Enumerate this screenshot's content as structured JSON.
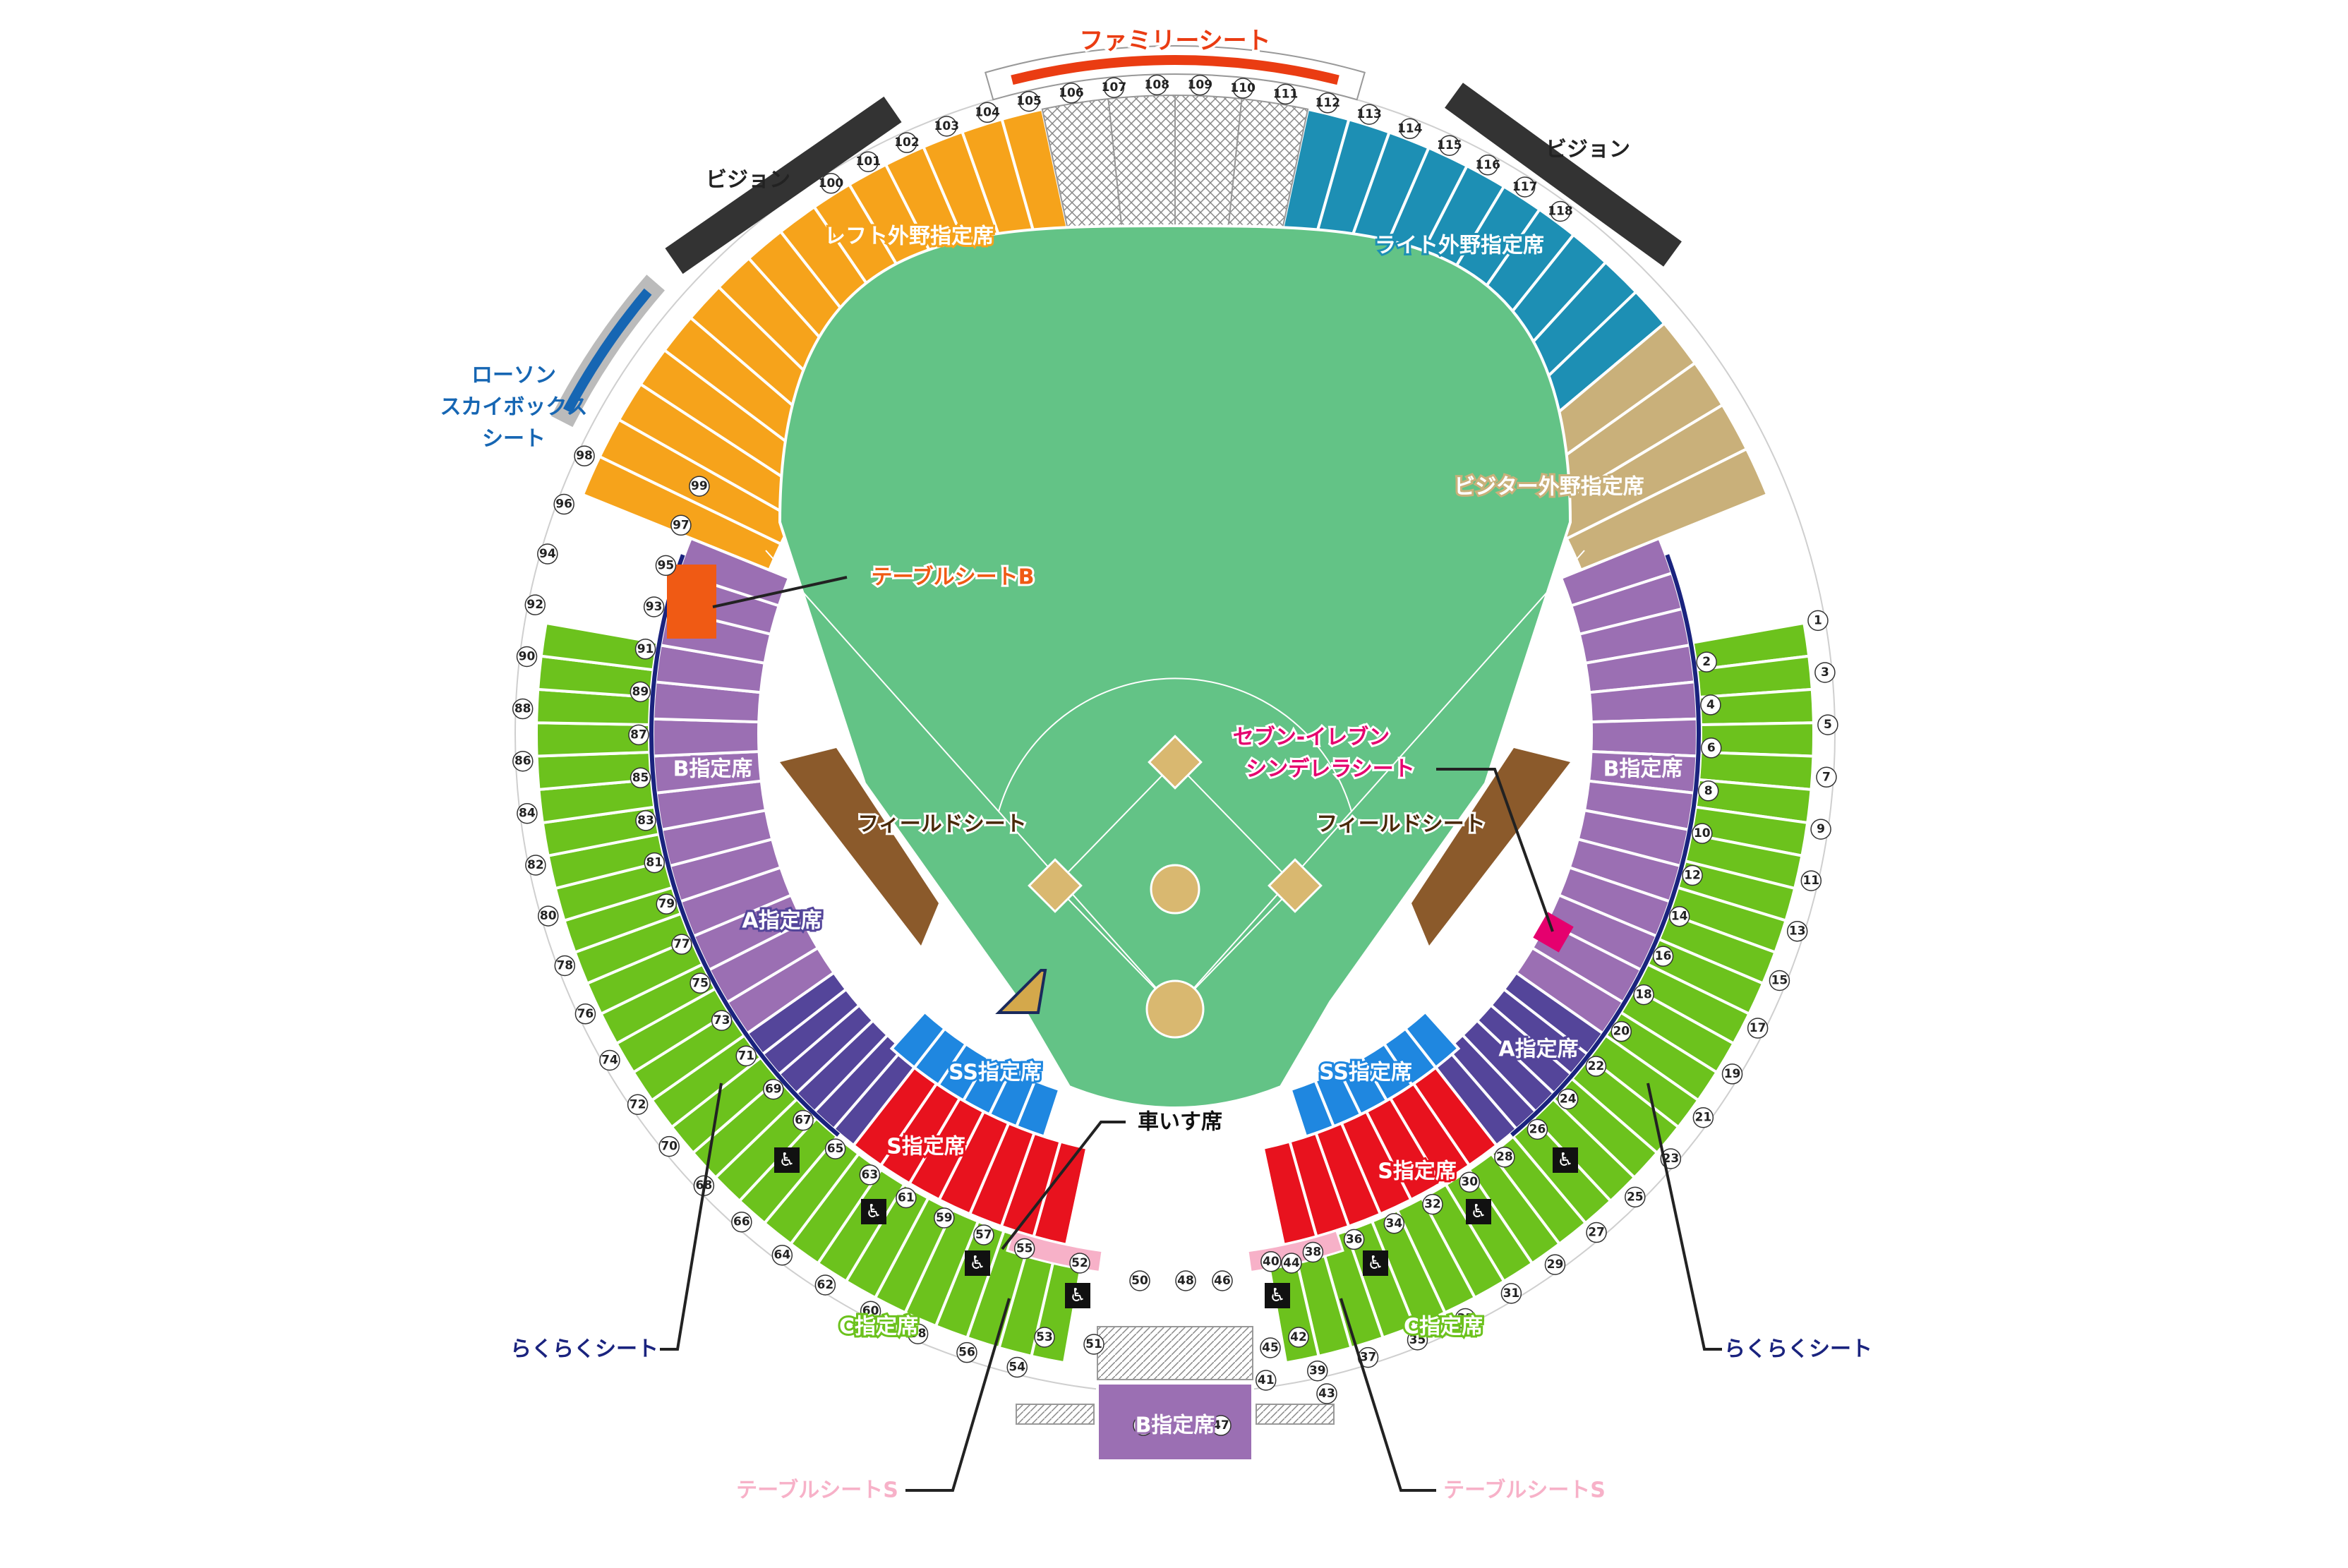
{
  "map": {
    "colors": {
      "field": "#63c386",
      "infield": "#d9b870",
      "left_outfield": "#f6a31b",
      "right_outfield": "#1d8fb4",
      "visitor_outfield": "#c9b07a",
      "b_seat": "#9b6fb3",
      "a_seat": "#54459a",
      "ss_seat": "#1f87e0",
      "s_seat": "#e8121e",
      "c_seat": "#6cc21d",
      "field_seat": "#8b5a2b",
      "family": "#ea3c12",
      "table_b": "#f05a14",
      "cinderella": "#e5006e",
      "table_s": "#f7b1c8",
      "rakuraku": "#1a237e",
      "vision": "#333333",
      "lawson": "#1666b3",
      "grey": "#d8d8d8"
    },
    "icons": [
      "wheelchair-icon",
      "fighters-logo-icon"
    ],
    "labels": {
      "family": "ファミリーシート",
      "vision_left": "ビジョン",
      "vision_right": "ビジョン",
      "lawson_1": "ローソン",
      "lawson_2": "スカイボックス",
      "lawson_3": "シート",
      "left_outfield": "レフト外野指定席",
      "right_outfield": "ライト外野指定席",
      "visitor_outfield": "ビジター外野指定席",
      "table_b": "テーブルシートB",
      "cinderella_1": "セブン-イレブン",
      "cinderella_2": "シンデレラシート",
      "b_left": "B指定席",
      "b_right": "B指定席",
      "b_bottom": "B指定席",
      "field_left": "フィールドシート",
      "field_right": "フィールドシート",
      "a_left": "A指定席",
      "a_right": "A指定席",
      "ss_left": "SS指定席",
      "ss_right": "SS指定席",
      "wheelchair": "車いす席",
      "s_left": "S指定席",
      "s_right": "S指定席",
      "c_left": "C指定席",
      "c_right": "C指定席",
      "rakuraku_left": "らくらくシート",
      "rakuraku_right": "らくらくシート",
      "table_s_left": "テーブルシートS",
      "table_s_right": "テーブルシートS"
    },
    "section_numbers": [
      "1",
      "2",
      "3",
      "4",
      "5",
      "6",
      "7",
      "8",
      "9",
      "10",
      "11",
      "12",
      "13",
      "14",
      "15",
      "16",
      "17",
      "18",
      "19",
      "20",
      "21",
      "22",
      "23",
      "24",
      "25",
      "26",
      "27",
      "28",
      "29",
      "30",
      "31",
      "32",
      "33",
      "34",
      "35",
      "36",
      "37",
      "38",
      "39",
      "40",
      "41",
      "42",
      "43",
      "44",
      "45",
      "46",
      "47",
      "48",
      "49",
      "50",
      "51",
      "52",
      "53",
      "54",
      "55",
      "56",
      "57",
      "58",
      "59",
      "60",
      "61",
      "62",
      "63",
      "64",
      "65",
      "66",
      "67",
      "68",
      "69",
      "70",
      "71",
      "72",
      "73",
      "74",
      "75",
      "76",
      "77",
      "78",
      "79",
      "80",
      "81",
      "82",
      "83",
      "84",
      "85",
      "86",
      "87",
      "88",
      "89",
      "90",
      "91",
      "92",
      "93",
      "94",
      "95",
      "96",
      "97",
      "98",
      "99",
      "100",
      "101",
      "102",
      "103",
      "104",
      "105",
      "106",
      "107",
      "108",
      "109",
      "110",
      "111",
      "112",
      "113",
      "114",
      "115",
      "116",
      "117",
      "118"
    ]
  }
}
